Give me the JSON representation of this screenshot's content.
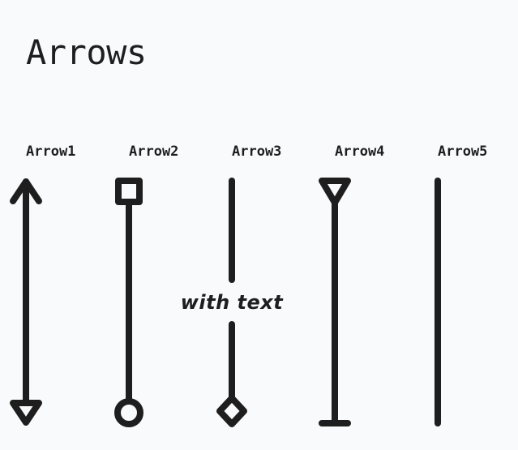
{
  "page": {
    "title": "Arrows"
  },
  "arrows": [
    {
      "label": "Arrow1",
      "start_head": "arrow",
      "end_head": "triangle-outline"
    },
    {
      "label": "Arrow2",
      "start_head": "square-outline",
      "end_head": "circle-outline"
    },
    {
      "label": "Arrow3",
      "start_head": "none",
      "end_head": "diamond-outline",
      "annotation": "with text"
    },
    {
      "label": "Arrow4",
      "start_head": "triangle-outline",
      "end_head": "bar"
    },
    {
      "label": "Arrow5",
      "start_head": "none",
      "end_head": "none"
    }
  ],
  "colors": {
    "background": "#f9fafb",
    "stroke": "#1e1e1e"
  }
}
